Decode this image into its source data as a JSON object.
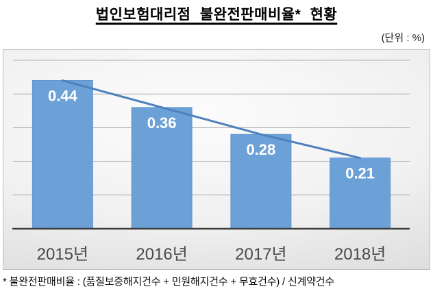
{
  "header": {
    "title": "법인보험대리점 불완전판매비율* 현황",
    "unit_label": "(단위 : %)"
  },
  "chart_data": {
    "type": "bar",
    "title": "법인보험대리점 불완전판매비율* 현황",
    "unit": "%",
    "categories": [
      "2015년",
      "2016년",
      "2017년",
      "2018년"
    ],
    "series": [
      {
        "name": "불완전판매비율",
        "type": "bar",
        "values": [
          0.44,
          0.36,
          0.28,
          0.21
        ]
      },
      {
        "name": "불완전판매비율 추세선",
        "type": "line",
        "values": [
          0.44,
          0.36,
          0.28,
          0.21
        ]
      }
    ],
    "data_labels": [
      "0.44",
      "0.36",
      "0.28",
      "0.21"
    ],
    "xlabel": "",
    "ylabel": "",
    "ylim": [
      0,
      0.5
    ],
    "gridline_interval": 0.1,
    "grid": true,
    "legend": "none",
    "y_axis_labels_visible": false
  },
  "footnote": "* 불완전판매비율 : (품질보증해지건수 + 민원해지건수 + 무효건수) / 신계약건수",
  "colors": {
    "bar_fill": "#6CA1D7",
    "bar_edge": "#5F95CD",
    "trend_line": "#4E80BD",
    "gridline": "#ACACAC",
    "axis_line": "#3D3D3D",
    "category_label": "#4A4A4A",
    "value_label": "#FFFFFF"
  }
}
